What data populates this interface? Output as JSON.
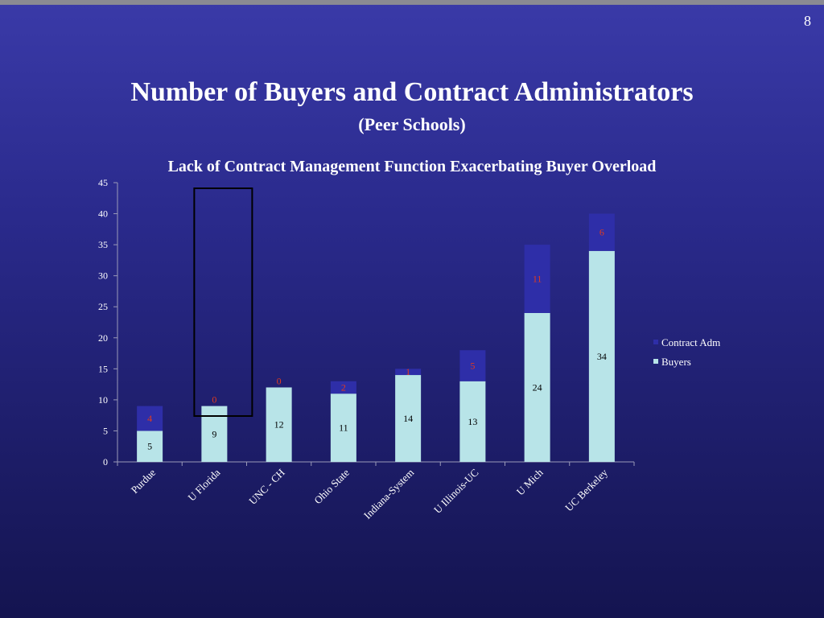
{
  "page_number": "8",
  "title": "Number of Buyers and Contract Administrators",
  "subtitle": "(Peer Schools)",
  "chart_data": {
    "type": "bar",
    "stacked": true,
    "title": "Lack of Contract Management Function Exacerbating Buyer Overload",
    "categories": [
      "Purdue",
      "U Florida",
      "UNC - CH",
      "Ohio State",
      "Indiana-System",
      "U Illinois-UC",
      "U Mich",
      "UC Berkeley"
    ],
    "series": [
      {
        "name": "Buyers",
        "values": [
          5,
          9,
          12,
          11,
          14,
          13,
          24,
          34
        ],
        "color": "#b8e4e8",
        "label_color": "#000000"
      },
      {
        "name": "Contract Adm",
        "values": [
          4,
          0,
          0,
          2,
          1,
          5,
          11,
          6
        ],
        "color": "#2e2ea8",
        "label_color": "#e03a1e"
      }
    ],
    "legend_order": [
      "Contract Adm",
      "Buyers"
    ],
    "ylim": [
      0,
      45
    ],
    "yticks": [
      "0",
      "5",
      "10",
      "15",
      "20",
      "25",
      "30",
      "35",
      "40",
      "45"
    ],
    "legend_position": "right",
    "highlight_category": "U Florida",
    "grid": false
  }
}
